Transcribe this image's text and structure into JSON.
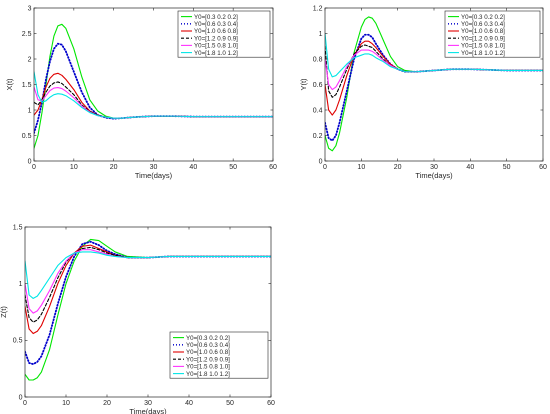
{
  "chart_data": [
    {
      "type": "line",
      "xlabel": "Time(days)",
      "ylabel": "X(t)",
      "xlim": [
        0,
        60
      ],
      "ylim": [
        0,
        3
      ],
      "xticks": [
        "0",
        "10",
        "20",
        "30",
        "40",
        "50",
        "60"
      ],
      "yticks": [
        "0",
        "0.5",
        "1",
        "1.5",
        "2",
        "2.5",
        "3"
      ],
      "legend_position": "top-right",
      "series": [
        {
          "name": "Y0=[0.3  0.2 0.2]",
          "color": "#00e600",
          "style": "solid",
          "x": [
            0,
            1,
            2,
            3,
            4,
            5,
            6,
            7,
            8,
            10,
            12,
            14,
            16,
            18,
            20,
            22,
            25,
            30,
            35,
            40,
            50,
            60
          ],
          "y": [
            0.25,
            0.5,
            0.95,
            1.5,
            2.05,
            2.45,
            2.65,
            2.68,
            2.6,
            2.2,
            1.65,
            1.2,
            0.98,
            0.88,
            0.84,
            0.84,
            0.86,
            0.88,
            0.88,
            0.87,
            0.87,
            0.87
          ]
        },
        {
          "name": "Y0=[0.6  0.3 0.4]",
          "color": "#0000cc",
          "style": "dotted",
          "x": [
            0,
            1,
            2,
            3,
            4,
            5,
            6,
            7,
            8,
            10,
            12,
            14,
            16,
            18,
            20,
            22,
            25,
            30,
            35,
            40,
            50,
            60
          ],
          "y": [
            0.55,
            0.8,
            1.15,
            1.6,
            1.95,
            2.2,
            2.3,
            2.28,
            2.15,
            1.75,
            1.35,
            1.05,
            0.9,
            0.85,
            0.83,
            0.84,
            0.86,
            0.88,
            0.88,
            0.87,
            0.87,
            0.87
          ]
        },
        {
          "name": "Y0=[1.0  0.6 0.8]",
          "color": "#e00000",
          "style": "solid",
          "x": [
            0,
            1,
            2,
            3,
            4,
            5,
            6,
            7,
            8,
            10,
            12,
            14,
            16,
            18,
            20,
            22,
            25,
            30,
            35,
            40,
            50,
            60
          ],
          "y": [
            0.9,
            1.0,
            1.2,
            1.45,
            1.62,
            1.7,
            1.72,
            1.68,
            1.6,
            1.4,
            1.15,
            0.98,
            0.9,
            0.86,
            0.84,
            0.84,
            0.86,
            0.88,
            0.88,
            0.87,
            0.87,
            0.87
          ]
        },
        {
          "name": "Y0=[1.2  0.9 0.9]",
          "color": "#000000",
          "style": "dashed",
          "x": [
            0,
            1,
            2,
            3,
            4,
            5,
            6,
            7,
            8,
            10,
            12,
            14,
            16,
            18,
            20,
            22,
            25,
            30,
            35,
            40,
            50,
            60
          ],
          "y": [
            1.15,
            1.1,
            1.2,
            1.35,
            1.47,
            1.53,
            1.55,
            1.52,
            1.45,
            1.3,
            1.1,
            0.97,
            0.9,
            0.86,
            0.84,
            0.84,
            0.86,
            0.88,
            0.88,
            0.87,
            0.87,
            0.87
          ]
        },
        {
          "name": "Y0=[1.5  0.8 1.0]",
          "color": "#ff33ff",
          "style": "solid",
          "x": [
            0,
            1,
            2,
            3,
            4,
            5,
            6,
            7,
            8,
            10,
            12,
            14,
            16,
            18,
            20,
            22,
            25,
            30,
            35,
            40,
            50,
            60
          ],
          "y": [
            1.45,
            1.2,
            1.18,
            1.28,
            1.38,
            1.43,
            1.44,
            1.42,
            1.37,
            1.24,
            1.08,
            0.96,
            0.89,
            0.86,
            0.84,
            0.84,
            0.86,
            0.88,
            0.88,
            0.87,
            0.87,
            0.87
          ]
        },
        {
          "name": "Y0=[1.8  1.0 1.2]",
          "color": "#00e6e6",
          "style": "solid",
          "x": [
            0,
            1,
            2,
            3,
            4,
            5,
            6,
            7,
            8,
            10,
            12,
            14,
            16,
            18,
            20,
            22,
            25,
            30,
            35,
            40,
            50,
            60
          ],
          "y": [
            1.75,
            1.3,
            1.15,
            1.18,
            1.25,
            1.3,
            1.32,
            1.31,
            1.28,
            1.18,
            1.05,
            0.95,
            0.89,
            0.86,
            0.84,
            0.84,
            0.86,
            0.88,
            0.88,
            0.87,
            0.87,
            0.87
          ]
        }
      ]
    },
    {
      "type": "line",
      "xlabel": "Time(days)",
      "ylabel": "Y(t)",
      "xlim": [
        0,
        60
      ],
      "ylim": [
        0,
        1.2
      ],
      "xticks": [
        "0",
        "10",
        "20",
        "30",
        "40",
        "50",
        "60"
      ],
      "yticks": [
        "0",
        "0.2",
        "0.4",
        "0.6",
        "0.8",
        "1",
        "1.2"
      ],
      "legend_position": "top-right",
      "series": [
        {
          "name": "Y0=[0.3  0.2 0.2]",
          "color": "#00e600",
          "style": "solid",
          "x": [
            0,
            1,
            2,
            3,
            4,
            6,
            8,
            10,
            11,
            12,
            13,
            14,
            16,
            18,
            20,
            22,
            25,
            30,
            35,
            40,
            50,
            60
          ],
          "y": [
            0.2,
            0.1,
            0.08,
            0.12,
            0.22,
            0.5,
            0.85,
            1.05,
            1.11,
            1.13,
            1.12,
            1.08,
            0.95,
            0.82,
            0.74,
            0.71,
            0.7,
            0.71,
            0.72,
            0.72,
            0.71,
            0.71
          ]
        },
        {
          "name": "Y0=[0.6  0.3 0.4]",
          "color": "#0000cc",
          "style": "dotted",
          "x": [
            0,
            1,
            2,
            3,
            4,
            6,
            8,
            10,
            11,
            12,
            13,
            14,
            16,
            18,
            20,
            22,
            25,
            30,
            35,
            40,
            50,
            60
          ],
          "y": [
            0.3,
            0.18,
            0.16,
            0.2,
            0.3,
            0.55,
            0.8,
            0.96,
            0.99,
            0.99,
            0.97,
            0.92,
            0.83,
            0.76,
            0.72,
            0.7,
            0.7,
            0.71,
            0.72,
            0.72,
            0.71,
            0.71
          ]
        },
        {
          "name": "Y0=[1.0  0.6 0.8]",
          "color": "#e00000",
          "style": "solid",
          "x": [
            0,
            1,
            2,
            3,
            4,
            6,
            8,
            10,
            11,
            12,
            13,
            14,
            16,
            18,
            20,
            22,
            25,
            30,
            35,
            40,
            50,
            60
          ],
          "y": [
            0.6,
            0.4,
            0.36,
            0.4,
            0.48,
            0.67,
            0.83,
            0.92,
            0.94,
            0.94,
            0.92,
            0.89,
            0.82,
            0.76,
            0.72,
            0.7,
            0.7,
            0.71,
            0.72,
            0.72,
            0.71,
            0.71
          ]
        },
        {
          "name": "Y0=[1.2  0.9 0.9]",
          "color": "#000000",
          "style": "dashed",
          "x": [
            0,
            1,
            2,
            3,
            4,
            6,
            8,
            10,
            11,
            12,
            13,
            14,
            16,
            18,
            20,
            22,
            25,
            30,
            35,
            40,
            50,
            60
          ],
          "y": [
            0.9,
            0.55,
            0.5,
            0.52,
            0.58,
            0.72,
            0.84,
            0.9,
            0.91,
            0.9,
            0.89,
            0.86,
            0.8,
            0.75,
            0.72,
            0.7,
            0.7,
            0.71,
            0.72,
            0.72,
            0.71,
            0.71
          ]
        },
        {
          "name": "Y0=[1.5  0.8 1.0]",
          "color": "#ff33ff",
          "style": "solid",
          "x": [
            0,
            1,
            2,
            3,
            4,
            6,
            8,
            10,
            11,
            12,
            13,
            14,
            16,
            18,
            20,
            22,
            25,
            30,
            35,
            40,
            50,
            60
          ],
          "y": [
            0.8,
            0.6,
            0.56,
            0.58,
            0.63,
            0.74,
            0.83,
            0.87,
            0.87,
            0.87,
            0.86,
            0.84,
            0.79,
            0.75,
            0.72,
            0.7,
            0.7,
            0.71,
            0.72,
            0.72,
            0.71,
            0.71
          ]
        },
        {
          "name": "Y0=[1.8  1.0 1.2]",
          "color": "#00e6e6",
          "style": "solid",
          "x": [
            0,
            1,
            2,
            3,
            4,
            6,
            8,
            10,
            11,
            12,
            13,
            14,
            16,
            18,
            20,
            22,
            25,
            30,
            35,
            40,
            50,
            60
          ],
          "y": [
            1.0,
            0.72,
            0.66,
            0.67,
            0.7,
            0.76,
            0.81,
            0.83,
            0.84,
            0.84,
            0.83,
            0.81,
            0.78,
            0.74,
            0.72,
            0.7,
            0.7,
            0.71,
            0.72,
            0.72,
            0.71,
            0.71
          ]
        }
      ]
    },
    {
      "type": "line",
      "xlabel": "Time(days)",
      "ylabel": "Z(t)",
      "xlim": [
        0,
        60
      ],
      "ylim": [
        0,
        1.5
      ],
      "xticks": [
        "0",
        "10",
        "20",
        "30",
        "40",
        "50",
        "60"
      ],
      "yticks": [
        "0",
        "0.5",
        "1",
        "1.5"
      ],
      "legend_position": "bottom-right",
      "series": [
        {
          "name": "Y0=[0.3  0.2 0.2]",
          "color": "#00e600",
          "style": "solid",
          "x": [
            0,
            1,
            2,
            3,
            4,
            6,
            8,
            10,
            12,
            14,
            16,
            18,
            20,
            22,
            25,
            30,
            35,
            40,
            50,
            60
          ],
          "y": [
            0.2,
            0.15,
            0.15,
            0.17,
            0.22,
            0.42,
            0.72,
            1.0,
            1.2,
            1.33,
            1.39,
            1.38,
            1.33,
            1.28,
            1.24,
            1.23,
            1.24,
            1.24,
            1.24,
            1.24
          ]
        },
        {
          "name": "Y0=[0.6  0.3 0.4]",
          "color": "#0000cc",
          "style": "dotted",
          "x": [
            0,
            1,
            2,
            3,
            4,
            6,
            8,
            10,
            12,
            14,
            16,
            18,
            20,
            22,
            25,
            30,
            35,
            40,
            50,
            60
          ],
          "y": [
            0.4,
            0.3,
            0.29,
            0.31,
            0.36,
            0.55,
            0.82,
            1.06,
            1.24,
            1.35,
            1.37,
            1.34,
            1.29,
            1.26,
            1.23,
            1.23,
            1.24,
            1.24,
            1.24,
            1.24
          ]
        },
        {
          "name": "Y0=[1.0  0.6 0.8]",
          "color": "#e00000",
          "style": "solid",
          "x": [
            0,
            1,
            2,
            3,
            4,
            6,
            8,
            10,
            12,
            14,
            16,
            18,
            20,
            22,
            25,
            30,
            35,
            40,
            50,
            60
          ],
          "y": [
            0.8,
            0.6,
            0.56,
            0.58,
            0.63,
            0.8,
            1.0,
            1.16,
            1.27,
            1.33,
            1.34,
            1.31,
            1.28,
            1.25,
            1.23,
            1.23,
            1.24,
            1.24,
            1.24,
            1.24
          ]
        },
        {
          "name": "Y0=[1.2  0.9 0.9]",
          "color": "#000000",
          "style": "dashed",
          "x": [
            0,
            1,
            2,
            3,
            4,
            6,
            8,
            10,
            12,
            14,
            16,
            18,
            20,
            22,
            25,
            30,
            35,
            40,
            50,
            60
          ],
          "y": [
            0.9,
            0.7,
            0.66,
            0.68,
            0.73,
            0.88,
            1.05,
            1.19,
            1.27,
            1.31,
            1.32,
            1.3,
            1.27,
            1.25,
            1.23,
            1.23,
            1.24,
            1.24,
            1.24,
            1.24
          ]
        },
        {
          "name": "Y0=[1.5  0.8 1.0]",
          "color": "#ff33ff",
          "style": "solid",
          "x": [
            0,
            1,
            2,
            3,
            4,
            6,
            8,
            10,
            12,
            14,
            16,
            18,
            20,
            22,
            25,
            30,
            35,
            40,
            50,
            60
          ],
          "y": [
            1.0,
            0.78,
            0.74,
            0.76,
            0.81,
            0.94,
            1.09,
            1.2,
            1.27,
            1.3,
            1.3,
            1.28,
            1.26,
            1.24,
            1.23,
            1.23,
            1.24,
            1.24,
            1.24,
            1.24
          ]
        },
        {
          "name": "Y0=[1.8  1.0 1.2]",
          "color": "#00e6e6",
          "style": "solid",
          "x": [
            0,
            1,
            2,
            3,
            4,
            6,
            8,
            10,
            12,
            14,
            16,
            18,
            20,
            22,
            25,
            30,
            35,
            40,
            50,
            60
          ],
          "y": [
            1.2,
            0.9,
            0.87,
            0.89,
            0.94,
            1.05,
            1.16,
            1.23,
            1.27,
            1.28,
            1.28,
            1.27,
            1.25,
            1.24,
            1.23,
            1.23,
            1.24,
            1.24,
            1.24,
            1.24
          ]
        }
      ]
    }
  ]
}
